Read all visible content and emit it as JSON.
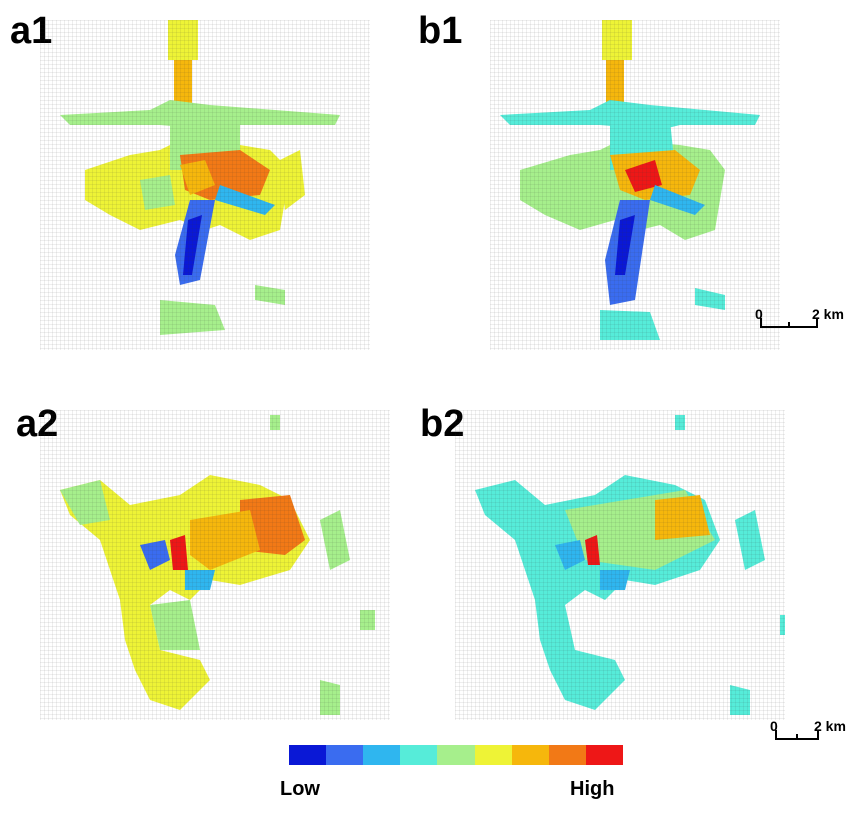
{
  "panels": {
    "a1": "a1",
    "b1": "b1",
    "a2": "a2",
    "b2": "b2"
  },
  "scalebar": {
    "zero": "0",
    "distance": "2 km"
  },
  "legend": {
    "low": "Low",
    "high": "High",
    "colors": [
      "#0a18d6",
      "#3a6cf0",
      "#2fb6ef",
      "#56ecd9",
      "#a6ef8c",
      "#eef336",
      "#f6b70c",
      "#f27916",
      "#ee1717"
    ]
  },
  "map_colors": {
    "grid_line": "#333333",
    "light_green": "#a6ef8c",
    "cyan": "#56ecd9",
    "yellow": "#eef336",
    "orange": "#f6b70c",
    "dark_orange": "#f27916",
    "red": "#ee1717",
    "blue": "#3a6cf0",
    "dark_blue": "#0a18d6",
    "sky": "#2fb6ef"
  }
}
